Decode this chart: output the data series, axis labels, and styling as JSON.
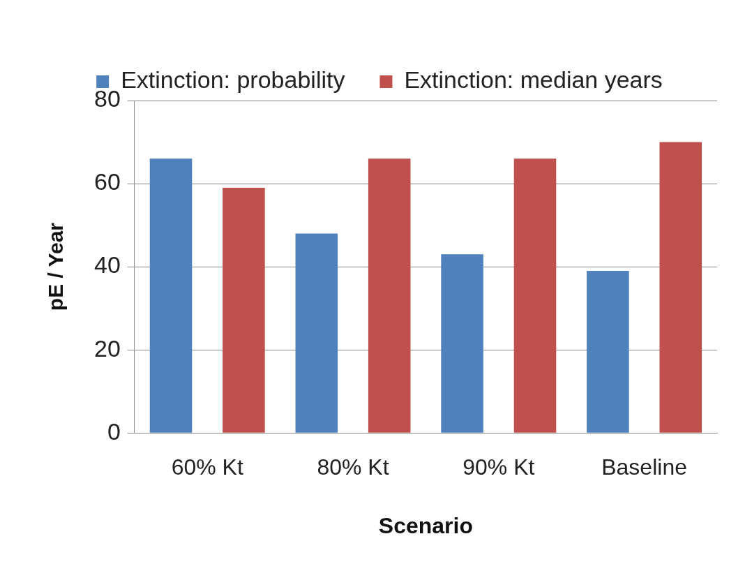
{
  "chart_data": {
    "type": "bar",
    "xlabel": "Scenario",
    "ylabel": "pE / Year",
    "categories": [
      "60% Kt",
      "80% Kt",
      "90% Kt",
      "Baseline"
    ],
    "series": [
      {
        "name": "Extinction: probability",
        "color": "#4f81bd",
        "values": [
          66,
          48,
          43,
          39
        ]
      },
      {
        "name": "Extinction: median years",
        "color": "#c0504d",
        "values": [
          59,
          66,
          66,
          70
        ]
      }
    ],
    "ylim": [
      0,
      80
    ],
    "yticks": [
      0,
      20,
      40,
      60,
      80
    ],
    "grid": "y",
    "legend": "top"
  }
}
